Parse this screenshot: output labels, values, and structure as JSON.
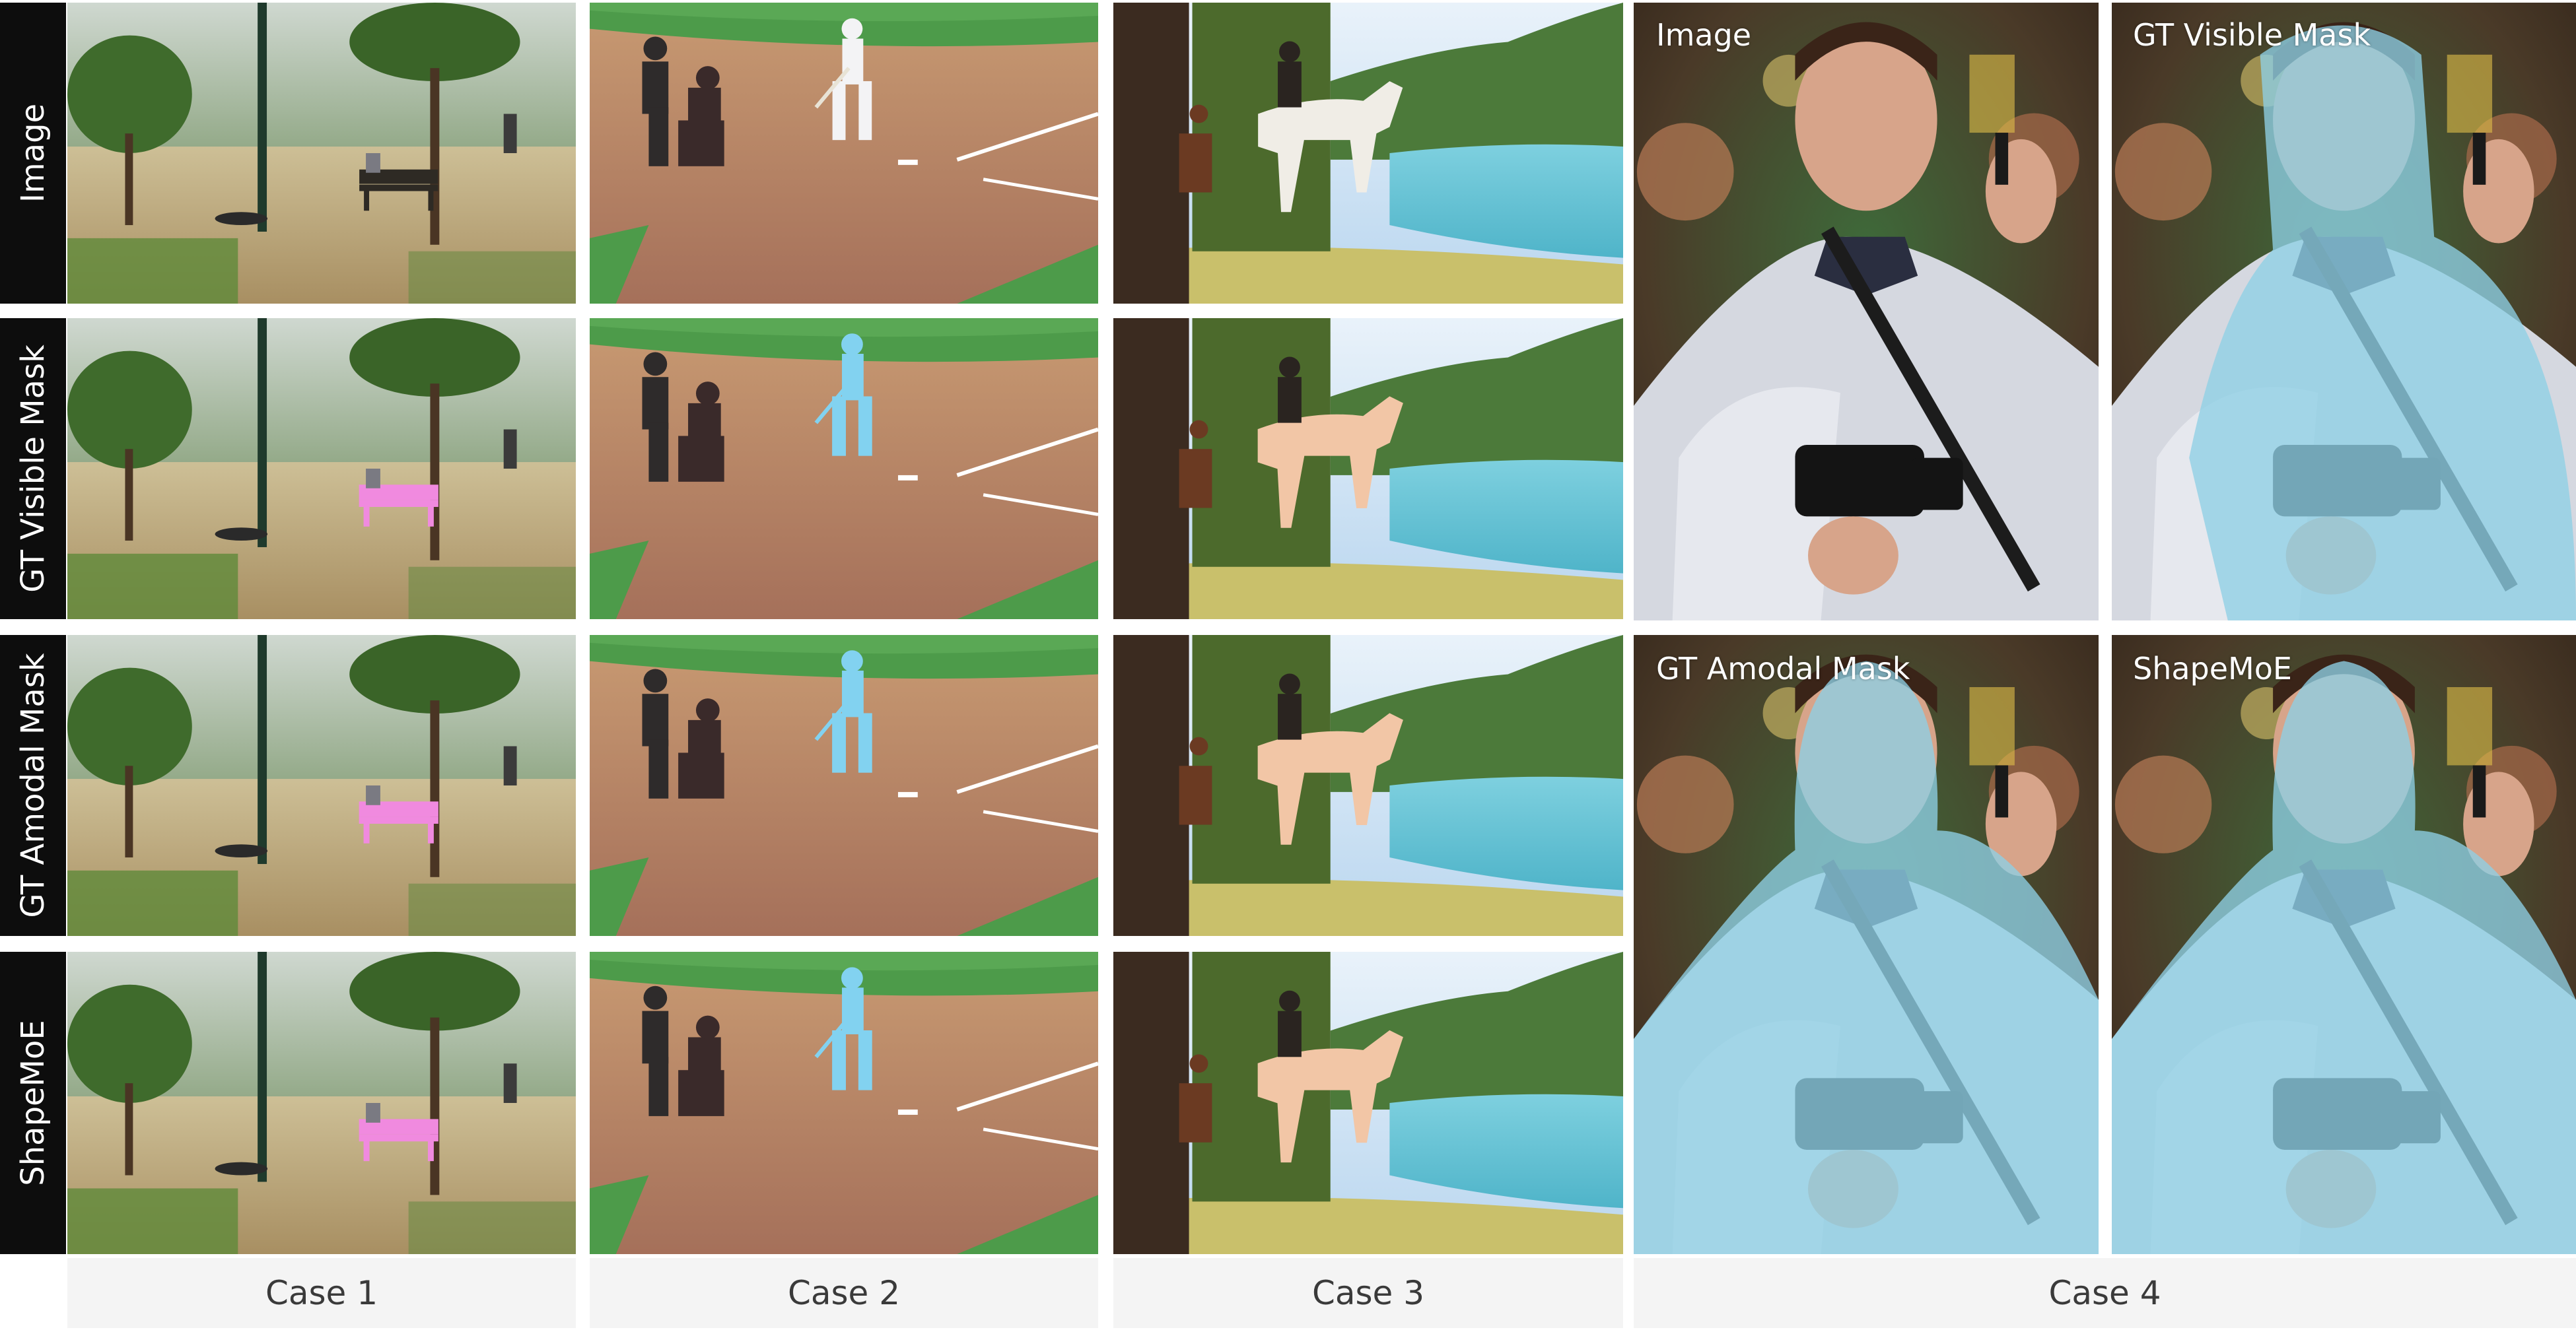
{
  "row_labels": [
    "Image",
    "GT Visible Mask",
    "GT Amodal Mask",
    "ShapeMoE"
  ],
  "case_labels": [
    "Case 1",
    "Case 2",
    "Case 3",
    "Case 4"
  ],
  "case4_labels": [
    "Image",
    "GT Visible Mask",
    "GT Amodal Mask",
    "ShapeMoE"
  ],
  "colors": {
    "case1_mask": "#f08adf",
    "case2_mask": "#82d2f0",
    "case3_mask": "#f2c6a6",
    "case4_mask": "#8ed0e6",
    "label_bg": "#0d0d0d"
  }
}
